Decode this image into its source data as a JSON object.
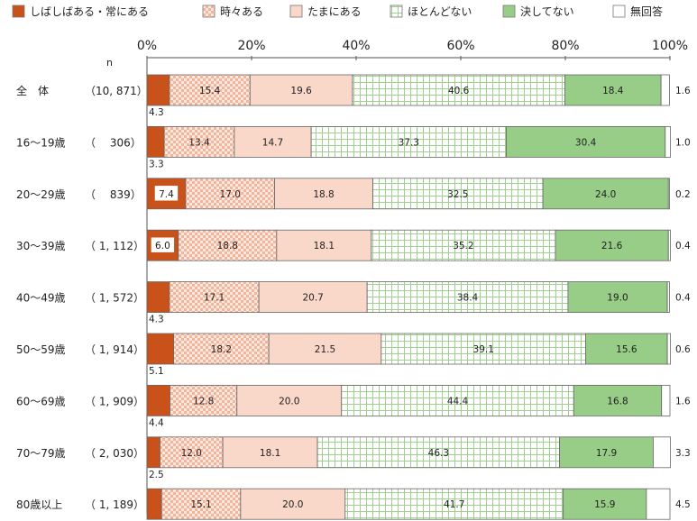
{
  "chart_data": {
    "type": "bar",
    "stacked": true,
    "orientation": "horizontal",
    "n_header": "n",
    "xlim": [
      0,
      100
    ],
    "x_ticks": [
      "0%",
      "20%",
      "40%",
      "60%",
      "80%",
      "100%"
    ],
    "legend_position": "top",
    "series": [
      {
        "name": "しばしばある・常にある",
        "color": "#c9521a",
        "pattern": "solid"
      },
      {
        "name": "時々ある",
        "color": "#f3b49a",
        "pattern": "checker"
      },
      {
        "name": "たまにある",
        "color": "#f9d7c9",
        "pattern": "solid"
      },
      {
        "name": "ほとんどない",
        "color": "#8dc97f",
        "pattern": "grid"
      },
      {
        "name": "決してない",
        "color": "#97cd86",
        "pattern": "solid"
      },
      {
        "name": "無回答",
        "color": "#ffffff",
        "pattern": "solid"
      }
    ],
    "rows": [
      {
        "label": "全　体",
        "n": "（10, 871）",
        "values": [
          4.3,
          15.4,
          19.6,
          40.6,
          18.4,
          1.6
        ]
      },
      {
        "label": "16〜19歳",
        "n": "（　 306）",
        "values": [
          3.3,
          13.4,
          14.7,
          37.3,
          30.4,
          1.0
        ]
      },
      {
        "label": "20〜29歳",
        "n": "（　 839）",
        "values": [
          7.4,
          17.0,
          18.8,
          32.5,
          24.0,
          0.2
        ]
      },
      {
        "label": "30〜39歳",
        "n": "（ 1, 112）",
        "values": [
          6.0,
          18.8,
          18.1,
          35.2,
          21.6,
          0.4
        ]
      },
      {
        "label": "40〜49歳",
        "n": "（ 1, 572）",
        "values": [
          4.3,
          17.1,
          20.7,
          38.4,
          19.0,
          0.4
        ]
      },
      {
        "label": "50〜59歳",
        "n": "（ 1, 914）",
        "values": [
          5.1,
          18.2,
          21.5,
          39.1,
          15.6,
          0.6
        ]
      },
      {
        "label": "60〜69歳",
        "n": "（ 1, 909）",
        "values": [
          4.4,
          12.8,
          20.0,
          44.4,
          16.8,
          1.6
        ]
      },
      {
        "label": "70〜79歳",
        "n": "（ 2, 030）",
        "values": [
          2.5,
          12.0,
          18.1,
          46.3,
          17.9,
          3.3
        ]
      },
      {
        "label": "80歳以上",
        "n": "（ 1, 189）",
        "values": [
          2.8,
          15.1,
          20.0,
          41.7,
          15.9,
          4.5
        ]
      }
    ]
  }
}
